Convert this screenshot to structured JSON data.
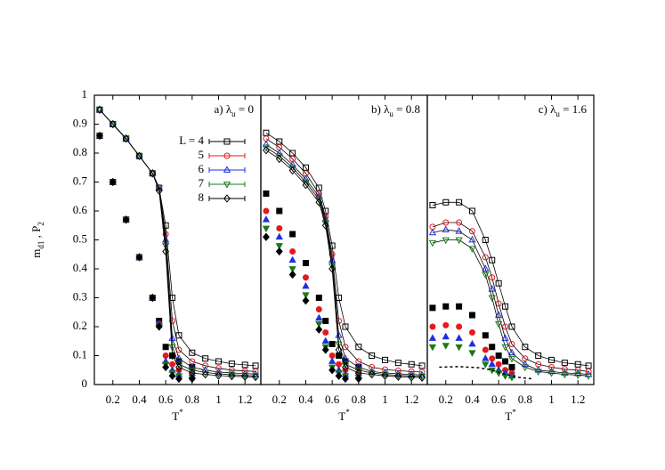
{
  "chart_data": [
    {
      "type": "line",
      "annotation": {
        "prefix": "a)  λ",
        "sub": "u",
        "suffix": " = 0"
      },
      "ylabel": {
        "m": "m",
        "m_sub": "d1",
        "mid": " , P",
        "p_sub": "2"
      },
      "xlabel": {
        "base": "T",
        "sup": "*"
      },
      "xlim": [
        0.06,
        1.32
      ],
      "ylim": [
        0,
        1
      ],
      "xticks": [
        0.2,
        0.4,
        0.6,
        0.8,
        1,
        1.2
      ],
      "yticks": [
        0,
        0.1,
        0.2,
        0.3,
        0.4,
        0.5,
        0.6,
        0.7,
        0.8,
        0.9,
        1
      ],
      "legend": "upper right",
      "line_color": "#000000",
      "x": [
        0.1,
        0.2,
        0.3,
        0.4,
        0.5,
        0.55,
        0.6,
        0.65,
        0.7,
        0.8,
        0.9,
        1.0,
        1.1,
        1.2,
        1.28
      ],
      "series": [
        {
          "name": "L = 4",
          "color": "#000000",
          "marker": "square",
          "values": [
            0.95,
            0.9,
            0.85,
            0.79,
            0.73,
            0.68,
            0.55,
            0.3,
            0.17,
            0.11,
            0.09,
            0.08,
            0.072,
            0.068,
            0.065
          ],
          "filled_values": [
            0.86,
            0.7,
            0.57,
            0.44,
            0.3,
            0.22,
            0.13,
            0.1,
            0.08,
            0.06,
            null,
            null,
            null,
            null,
            null
          ]
        },
        {
          "name": "5",
          "color": "#e8191c",
          "marker": "circle",
          "values": [
            0.95,
            0.9,
            0.85,
            0.79,
            0.73,
            0.68,
            0.52,
            0.22,
            0.12,
            0.08,
            0.065,
            0.056,
            0.05,
            0.047,
            0.045
          ],
          "filled_values": [
            0.86,
            0.7,
            0.57,
            0.44,
            0.3,
            0.21,
            0.1,
            0.07,
            0.05,
            0.04,
            null,
            null,
            null,
            null,
            null
          ]
        },
        {
          "name": "6",
          "color": "#1f2fe0",
          "marker": "triangle",
          "values": [
            0.95,
            0.9,
            0.85,
            0.79,
            0.73,
            0.68,
            0.5,
            0.16,
            0.09,
            0.06,
            0.05,
            0.043,
            0.04,
            0.038,
            0.036
          ],
          "filled_values": [
            0.86,
            0.7,
            0.57,
            0.44,
            0.3,
            0.21,
            0.08,
            0.05,
            0.035,
            0.03,
            null,
            null,
            null,
            null,
            null
          ]
        },
        {
          "name": "7",
          "color": "#1a7a1a",
          "marker": "triangle-down",
          "values": [
            0.95,
            0.9,
            0.85,
            0.79,
            0.73,
            0.68,
            0.48,
            0.13,
            0.07,
            0.05,
            0.042,
            0.037,
            0.034,
            0.032,
            0.03
          ],
          "filled_values": [
            0.86,
            0.7,
            0.57,
            0.44,
            0.3,
            0.2,
            0.07,
            0.04,
            0.03,
            0.025,
            null,
            null,
            null,
            null,
            null
          ]
        },
        {
          "name": "8",
          "color": "#000000",
          "marker": "diamond",
          "values": [
            0.95,
            0.9,
            0.85,
            0.79,
            0.73,
            0.67,
            0.46,
            0.1,
            0.06,
            0.04,
            0.035,
            0.031,
            0.029,
            0.027,
            0.026
          ],
          "filled_values": [
            0.86,
            0.7,
            0.57,
            0.44,
            0.3,
            0.2,
            0.06,
            0.03,
            0.02,
            0.02,
            null,
            null,
            null,
            null,
            null
          ]
        }
      ]
    },
    {
      "type": "line",
      "annotation": {
        "prefix": "b)  λ",
        "sub": "u",
        "suffix": " = 0.8"
      },
      "xlabel": {
        "base": "T",
        "sup": "*"
      },
      "xlim": [
        0.06,
        1.32
      ],
      "ylim": [
        0,
        1
      ],
      "xticks": [
        0.2,
        0.4,
        0.6,
        0.8,
        1,
        1.2
      ],
      "line_color": "#000000",
      "x": [
        0.1,
        0.2,
        0.3,
        0.4,
        0.5,
        0.55,
        0.6,
        0.65,
        0.7,
        0.8,
        0.9,
        1.0,
        1.1,
        1.2,
        1.28
      ],
      "series": [
        {
          "color": "#000000",
          "marker": "square",
          "values": [
            0.87,
            0.84,
            0.8,
            0.75,
            0.68,
            0.6,
            0.48,
            0.3,
            0.2,
            0.13,
            0.1,
            0.085,
            0.075,
            0.07,
            0.065
          ],
          "filled_values": [
            0.66,
            0.6,
            0.52,
            0.42,
            0.3,
            0.22,
            0.14,
            0.1,
            0.08,
            0.06,
            null,
            null,
            null,
            null,
            null
          ]
        },
        {
          "color": "#e8191c",
          "marker": "circle",
          "values": [
            0.85,
            0.82,
            0.78,
            0.73,
            0.66,
            0.58,
            0.45,
            0.22,
            0.13,
            0.08,
            0.06,
            0.052,
            0.048,
            0.045,
            0.043
          ],
          "filled_values": [
            0.6,
            0.54,
            0.46,
            0.37,
            0.26,
            0.18,
            0.1,
            0.07,
            0.05,
            0.04,
            null,
            null,
            null,
            null,
            null
          ]
        },
        {
          "color": "#1f2fe0",
          "marker": "triangle",
          "values": [
            0.83,
            0.8,
            0.76,
            0.71,
            0.65,
            0.57,
            0.43,
            0.17,
            0.09,
            0.06,
            0.045,
            0.04,
            0.037,
            0.035,
            0.033
          ],
          "filled_values": [
            0.57,
            0.51,
            0.43,
            0.34,
            0.23,
            0.15,
            0.08,
            0.05,
            0.035,
            0.03,
            null,
            null,
            null,
            null,
            null
          ]
        },
        {
          "color": "#1a7a1a",
          "marker": "triangle-down",
          "values": [
            0.82,
            0.79,
            0.75,
            0.7,
            0.64,
            0.56,
            0.41,
            0.14,
            0.07,
            0.05,
            0.04,
            0.035,
            0.032,
            0.03,
            0.028
          ],
          "filled_values": [
            0.54,
            0.48,
            0.4,
            0.31,
            0.21,
            0.13,
            0.06,
            0.04,
            0.03,
            0.025,
            null,
            null,
            null,
            null,
            null
          ]
        },
        {
          "color": "#000000",
          "marker": "diamond",
          "values": [
            0.81,
            0.78,
            0.74,
            0.69,
            0.63,
            0.55,
            0.4,
            0.12,
            0.06,
            0.04,
            0.035,
            0.03,
            0.027,
            0.025,
            0.024
          ],
          "filled_values": [
            0.51,
            0.46,
            0.38,
            0.29,
            0.19,
            0.12,
            0.05,
            0.03,
            0.02,
            0.02,
            null,
            null,
            null,
            null,
            null
          ]
        }
      ]
    },
    {
      "type": "line",
      "annotation": {
        "prefix": "c)  λ",
        "sub": "u",
        "suffix": " = 1.6"
      },
      "xlabel": {
        "base": "T",
        "sup": "*"
      },
      "xlim": [
        0.06,
        1.32
      ],
      "ylim": [
        0,
        1
      ],
      "xticks": [
        0.2,
        0.4,
        0.6,
        0.8,
        1,
        1.2
      ],
      "line_color": "#000000",
      "x": [
        0.1,
        0.2,
        0.3,
        0.4,
        0.5,
        0.55,
        0.6,
        0.65,
        0.7,
        0.8,
        0.9,
        1.0,
        1.1,
        1.2,
        1.28
      ],
      "series": [
        {
          "color": "#000000",
          "marker": "square",
          "values": [
            0.62,
            0.63,
            0.63,
            0.6,
            0.5,
            0.43,
            0.35,
            0.27,
            0.2,
            0.13,
            0.1,
            0.085,
            0.075,
            0.07,
            0.065
          ],
          "filled_values": [
            0.265,
            0.27,
            0.27,
            0.24,
            0.17,
            0.13,
            0.1,
            0.08,
            0.06,
            null,
            null,
            null,
            null,
            null,
            null
          ]
        },
        {
          "color": "#e8191c",
          "marker": "circle",
          "values": [
            0.545,
            0.56,
            0.56,
            0.53,
            0.44,
            0.37,
            0.28,
            0.2,
            0.14,
            0.09,
            0.07,
            0.06,
            0.053,
            0.05,
            0.045
          ],
          "filled_values": [
            0.2,
            0.205,
            0.2,
            0.18,
            0.12,
            0.09,
            0.07,
            0.05,
            0.04,
            null,
            null,
            null,
            null,
            null,
            null
          ]
        },
        {
          "color": "#1f2fe0",
          "marker": "triangle",
          "values": [
            0.525,
            0.535,
            0.53,
            0.5,
            0.4,
            0.33,
            0.24,
            0.16,
            0.11,
            0.07,
            0.05,
            0.045,
            0.04,
            0.038,
            0.035
          ],
          "filled_values": [
            0.16,
            0.165,
            0.16,
            0.14,
            0.09,
            0.07,
            0.05,
            0.04,
            0.03,
            null,
            null,
            null,
            null,
            null,
            null
          ]
        },
        {
          "color": "#1a7a1a",
          "marker": "triangle-down",
          "values": [
            0.49,
            0.5,
            0.5,
            0.47,
            0.38,
            0.3,
            0.21,
            0.13,
            0.09,
            0.06,
            0.045,
            0.04,
            0.035,
            0.033,
            0.03
          ],
          "filled_values": [
            0.13,
            0.135,
            0.13,
            0.11,
            0.07,
            0.05,
            0.04,
            0.03,
            0.025,
            null,
            null,
            null,
            null,
            null,
            null
          ]
        }
      ],
      "reference_line": {
        "x": [
          0.15,
          0.3,
          0.45,
          0.55,
          0.65,
          0.75,
          0.85
        ],
        "values": [
          0.06,
          0.062,
          0.058,
          0.05,
          0.035,
          0.025,
          0.02
        ],
        "color": "#000000",
        "dash": true
      }
    }
  ]
}
